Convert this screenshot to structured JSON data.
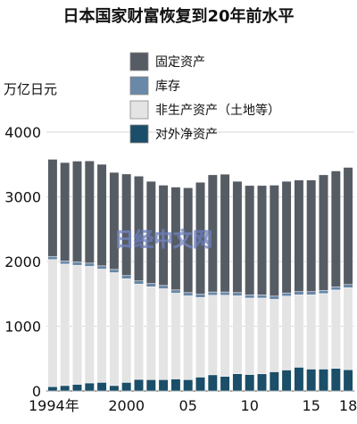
{
  "chart_data": {
    "type": "bar",
    "stacked": true,
    "title": "日本国家财富恢复到20年前水平",
    "ylabel": "万亿日元",
    "ylim": [
      0,
      4000
    ],
    "yticks": [
      0,
      1000,
      2000,
      3000,
      4000
    ],
    "xticklabels": [
      {
        "year": 1994,
        "label": "1994年"
      },
      {
        "year": 2000,
        "label": "2000"
      },
      {
        "year": 2005,
        "label": "05"
      },
      {
        "year": 2010,
        "label": "10"
      },
      {
        "year": 2015,
        "label": "15"
      },
      {
        "year": 2018,
        "label": "18"
      }
    ],
    "watermark": "日经中文网",
    "categories": [
      1994,
      1995,
      1996,
      1997,
      1998,
      1999,
      2000,
      2001,
      2002,
      2003,
      2004,
      2005,
      2006,
      2007,
      2008,
      2009,
      2010,
      2011,
      2012,
      2013,
      2014,
      2015,
      2016,
      2017,
      2018
    ],
    "series": [
      {
        "name": "对外净资产",
        "color": "#1b4e68",
        "values": [
          66,
          84,
          103,
          124,
          133,
          84,
          133,
          179,
          175,
          175,
          186,
          175,
          215,
          250,
          225,
          266,
          255,
          265,
          297,
          325,
          367,
          339,
          339,
          349,
          328
        ]
      },
      {
        "name": "非生产资产（土地等）",
        "color": "#e4e4e4",
        "values": [
          1964,
          1876,
          1839,
          1801,
          1750,
          1744,
          1600,
          1471,
          1435,
          1405,
          1325,
          1295,
          1230,
          1230,
          1255,
          1204,
          1180,
          1170,
          1118,
          1140,
          1118,
          1146,
          1166,
          1211,
          1267
        ]
      },
      {
        "name": "库存",
        "color": "#6a88a8",
        "values": [
          50,
          50,
          50,
          50,
          50,
          50,
          50,
          50,
          50,
          50,
          50,
          50,
          50,
          50,
          50,
          50,
          50,
          50,
          50,
          50,
          50,
          50,
          50,
          50,
          50
        ]
      },
      {
        "name": "固定资产",
        "color": "#565c63",
        "values": [
          1500,
          1520,
          1560,
          1580,
          1570,
          1500,
          1570,
          1620,
          1580,
          1550,
          1590,
          1620,
          1730,
          1810,
          1820,
          1720,
          1690,
          1690,
          1715,
          1725,
          1725,
          1725,
          1785,
          1790,
          1810
        ]
      }
    ],
    "legend_order": [
      "固定资产",
      "库存",
      "非生产资产（土地等）",
      "对外净资产"
    ],
    "grid": true
  }
}
